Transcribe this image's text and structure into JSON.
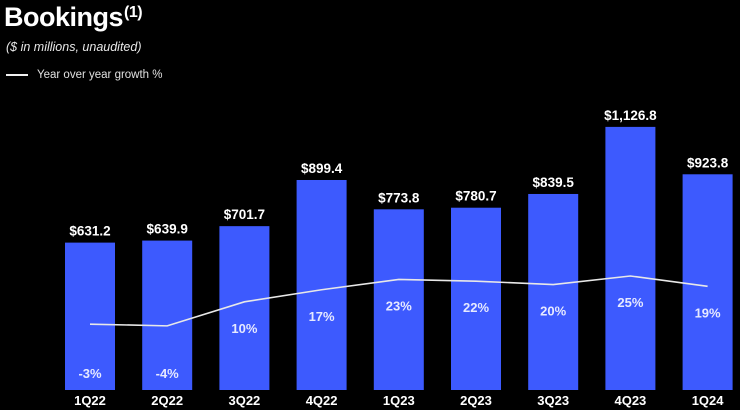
{
  "header": {
    "title": "Bookings",
    "title_sup": "(1)",
    "subtitle": "($ in millions, unaudited)",
    "legend_label": "Year over year growth %"
  },
  "colors": {
    "bar": "#3d5afe",
    "line": "#e8e8e8",
    "background": "#000000"
  },
  "chart_data": {
    "type": "bar",
    "title": "Bookings",
    "categories": [
      "1Q22",
      "2Q22",
      "3Q22",
      "4Q22",
      "1Q23",
      "2Q23",
      "3Q23",
      "4Q23",
      "1Q24"
    ],
    "values": [
      631.2,
      639.9,
      701.7,
      899.4,
      773.8,
      780.7,
      839.5,
      1126.8,
      923.8
    ],
    "value_labels": [
      "$631.2",
      "$639.9",
      "$701.7",
      "$899.4",
      "$773.8",
      "$780.7",
      "$839.5",
      "$1,126.8",
      "$923.8"
    ],
    "series": [
      {
        "name": "Bookings",
        "values": [
          631.2,
          639.9,
          701.7,
          899.4,
          773.8,
          780.7,
          839.5,
          1126.8,
          923.8
        ]
      },
      {
        "name": "Year over year growth %",
        "type": "line",
        "values": [
          -3,
          -4,
          10,
          17,
          23,
          22,
          20,
          25,
          19
        ],
        "labels": [
          "-3%",
          "-4%",
          "10%",
          "17%",
          "23%",
          "22%",
          "20%",
          "25%",
          "19%"
        ]
      }
    ],
    "xlabel": "",
    "ylabel": "$ in millions",
    "legend": "top-left"
  }
}
